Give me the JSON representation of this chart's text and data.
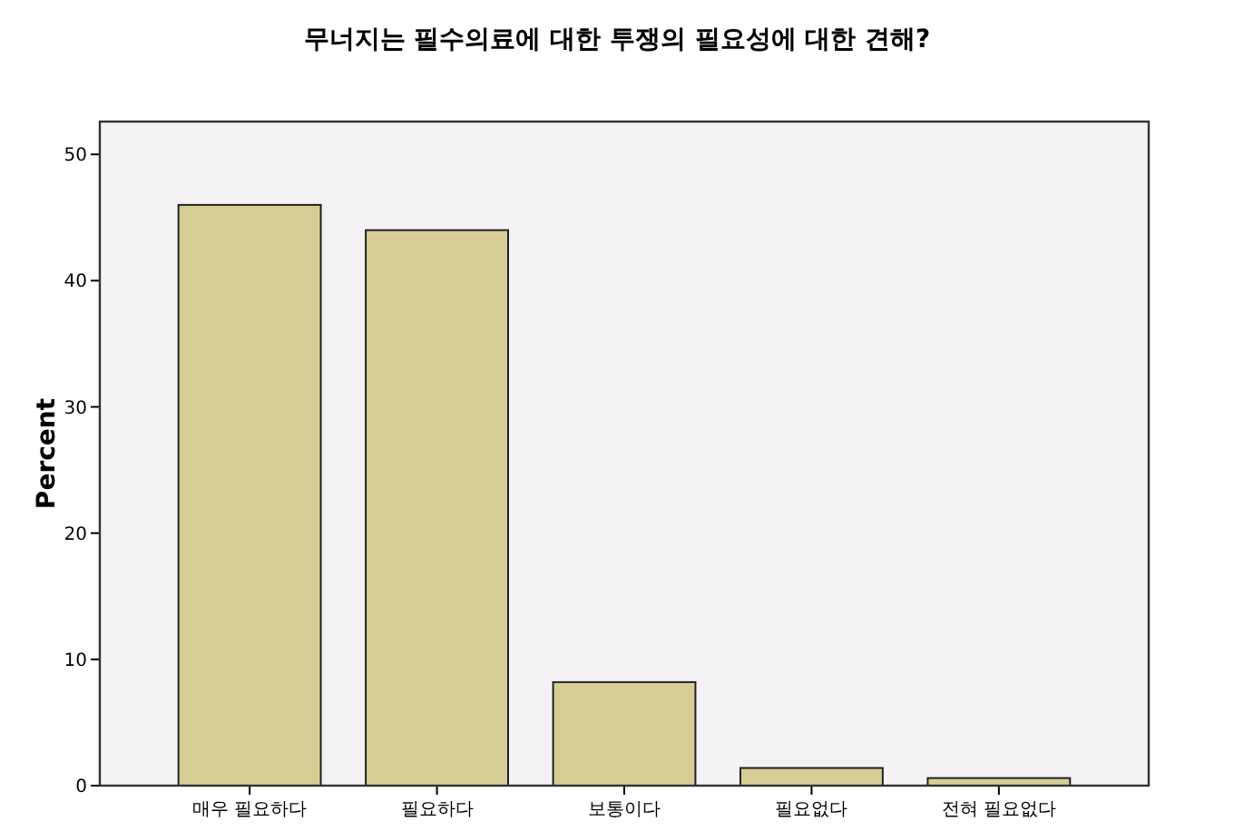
{
  "chart_data": {
    "type": "bar",
    "title": "무너지는 필수의료에 대한 투쟁의 필요성에 대한 견해?",
    "ylabel": "Percent",
    "categories": [
      "매우 필요하다",
      "필요하다",
      "보통이다",
      "필요없다",
      "전혀 필요없다"
    ],
    "values": [
      46.0,
      44.0,
      8.2,
      1.4,
      0.6
    ],
    "color": "#d6cd96",
    "ylim": [
      0,
      52.6
    ],
    "yticks": [
      0,
      10,
      20,
      30,
      40,
      50
    ],
    "grid": false
  }
}
